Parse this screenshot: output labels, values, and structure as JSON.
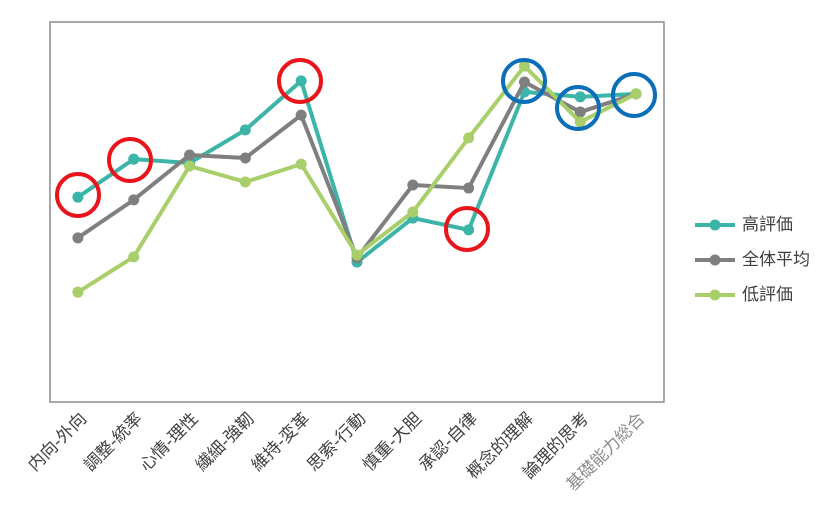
{
  "chart_data": {
    "type": "line",
    "categories": [
      "内向-外向",
      "調整-統率",
      "心情-理性",
      "繊細-強靭",
      "維持-変革",
      "思索-行動",
      "慎重-大胆",
      "承認-自律",
      "概念的理解",
      "論理的思考",
      "基礎能力総合"
    ],
    "series": [
      {
        "name": "高評価",
        "color": "#3cb4a8",
        "values": [
          53.9,
          63.9,
          62.9,
          71.6,
          84.5,
          36.8,
          48.4,
          45.3,
          81.6,
          80.3,
          81.1
        ]
      },
      {
        "name": "全体平均",
        "color": "#7f7f7f",
        "values": [
          43.2,
          53.2,
          65.0,
          64.2,
          75.5,
          37.9,
          57.1,
          56.3,
          84.2,
          76.3,
          81.1
        ]
      },
      {
        "name": "低評価",
        "color": "#a9cf6a",
        "values": [
          28.9,
          38.2,
          62.1,
          57.9,
          62.6,
          38.7,
          50.0,
          69.5,
          88.4,
          73.7,
          81.1
        ]
      }
    ],
    "ylim": [
      0,
      100
    ],
    "grid": false,
    "legend": "right"
  }
}
